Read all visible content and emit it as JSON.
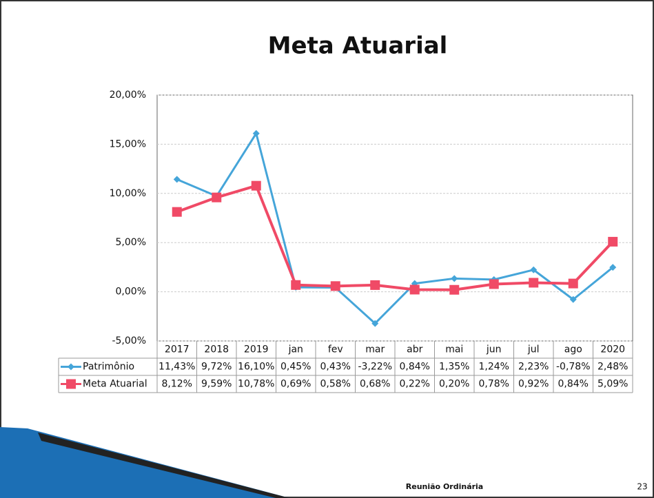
{
  "chart_data": {
    "type": "line",
    "title": "Meta Atuarial",
    "categories": [
      "2017",
      "2018",
      "2019",
      "jan",
      "fev",
      "mar",
      "abr",
      "mai",
      "jun",
      "jul",
      "ago",
      "2020"
    ],
    "series": [
      {
        "name": "Patrimônio",
        "color": "#45a5d9",
        "marker": "diamond",
        "values": [
          11.43,
          9.72,
          16.1,
          0.45,
          0.43,
          -3.22,
          0.84,
          1.35,
          1.24,
          2.23,
          -0.78,
          2.48
        ],
        "value_labels": [
          "11,43%",
          "9,72%",
          "16,10%",
          "0,45%",
          "0,43%",
          "-3,22%",
          "0,84%",
          "1,35%",
          "1,24%",
          "2,23%",
          "-0,78%",
          "2,48%"
        ]
      },
      {
        "name": "Meta Atuarial",
        "color": "#f04a66",
        "marker": "square",
        "values": [
          8.12,
          9.59,
          10.78,
          0.69,
          0.58,
          0.68,
          0.22,
          0.2,
          0.78,
          0.92,
          0.84,
          5.09
        ],
        "value_labels": [
          "8,12%",
          "9,59%",
          "10,78%",
          "0,69%",
          "0,58%",
          "0,68%",
          "0,22%",
          "0,20%",
          "0,78%",
          "0,92%",
          "0,84%",
          "5,09%"
        ]
      }
    ],
    "ylim": [
      -5,
      20
    ],
    "yticks": [
      {
        "value": -5,
        "label": "-5,00%"
      },
      {
        "value": 0,
        "label": "0,00%"
      },
      {
        "value": 5,
        "label": "5,00%"
      },
      {
        "value": 10,
        "label": "10,00%"
      },
      {
        "value": 15,
        "label": "15,00%"
      },
      {
        "value": 20,
        "label": "20,00%"
      }
    ],
    "grid": true
  },
  "footer": {
    "text": "Reunião Ordinária",
    "page": "23"
  }
}
